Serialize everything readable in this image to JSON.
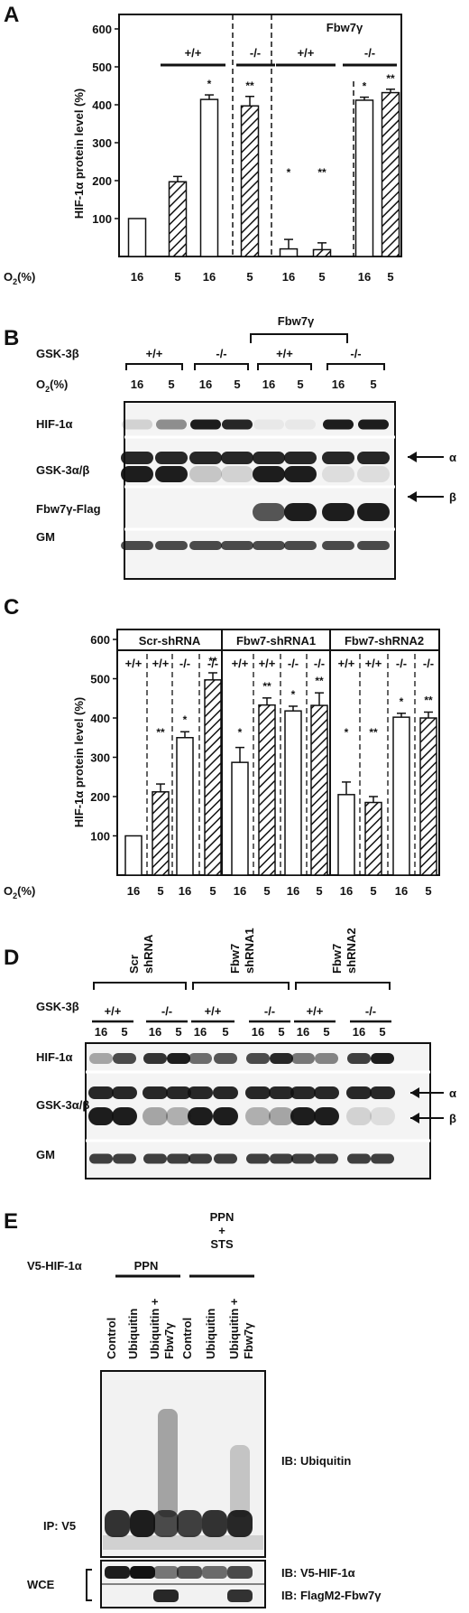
{
  "panelA": {
    "letter": "A",
    "ylabel": "HIF-1α protein level (%)",
    "xlabel_prefix": "O",
    "xlabel_sub": "2",
    "xlabel_suffix": "(%)",
    "group_labels": [
      "+/+",
      "-/-",
      "+/+",
      "-/-"
    ],
    "fbw_label": "Fbw7γ",
    "yticks": [
      "100",
      "200",
      "300",
      "400",
      "500",
      "600"
    ],
    "xticks": [
      "16",
      "5",
      "16",
      "5",
      "16",
      "5",
      "16",
      "5"
    ],
    "stars": [
      "*",
      "**",
      "*",
      "**",
      "*",
      "**"
    ]
  },
  "panelB": {
    "letter": "B",
    "fbw_label": "Fbw7γ",
    "gsk_label": "GSK-3β",
    "o2_prefix": "O",
    "o2_sub": "2",
    "o2_suffix": "(%)",
    "genotypes": [
      "+/+",
      "-/-",
      "+/+",
      "-/-"
    ],
    "lanes": [
      "16",
      "5",
      "16",
      "5",
      "16",
      "5",
      "16",
      "5"
    ],
    "rows": [
      "HIF-1α",
      "GSK-3α/β",
      "Fbw7γ-Flag",
      "GM"
    ],
    "alpha": "α",
    "beta": "β"
  },
  "panelC": {
    "letter": "C",
    "ylabel": "HIF-1α protein level (%)",
    "xlabel_prefix": "O",
    "xlabel_sub": "2",
    "xlabel_suffix": "(%)",
    "groups": [
      "Scr-shRNA",
      "Fbw7-shRNA1",
      "Fbw7-shRNA2"
    ],
    "genotypes": [
      "+/+",
      "+/+",
      "-/-",
      "-/-",
      "+/+",
      "+/+",
      "-/-",
      "-/-",
      "+/+",
      "+/+",
      "-/-",
      "-/-"
    ],
    "yticks": [
      "100",
      "200",
      "300",
      "400",
      "500",
      "600"
    ],
    "xticks": [
      "16",
      "5",
      "16",
      "5",
      "16",
      "5",
      "16",
      "5",
      "16",
      "5",
      "16",
      "5"
    ],
    "stars": [
      "**",
      "*",
      "**",
      "*",
      "**",
      "*",
      "**",
      "*",
      "**",
      "*",
      "**"
    ]
  },
  "panelD": {
    "letter": "D",
    "groups": [
      "Scr shRNA",
      "Fbw7 shRNA1",
      "Fbw7 shRNA2"
    ],
    "gsk_label": "GSK-3β",
    "genotypes": [
      "+/+",
      "-/-",
      "+/+",
      "-/-",
      "+/+",
      "-/-"
    ],
    "lanes": [
      "16",
      "5",
      "16",
      "5",
      "16",
      "5",
      "16",
      "5",
      "16",
      "5",
      "16",
      "5"
    ],
    "rows": [
      "HIF-1α",
      "GSK-3α/β",
      "GM"
    ],
    "alpha": "α",
    "beta": "β"
  },
  "panelE": {
    "letter": "E",
    "v5_label": "V5-HIF-1α",
    "ppn": "PPN",
    "ppn2": "PPN",
    "plus": "+",
    "sts": "STS",
    "lanes": [
      "Control",
      "Ubiquitin",
      "Ubiquitin +",
      "Control",
      "Ubiquitin",
      "Ubiquitin +"
    ],
    "fbw": "Fbw7γ",
    "ip_label": "IP: V5",
    "ib_ub": "IB: Ubiquitin",
    "wce": "WCE",
    "ib_v5": "IB: V5-HIF-1α",
    "ib_flag": "IB: FlagM2-Fbw7γ"
  },
  "chart_data": [
    {
      "type": "bar",
      "ylabel": "HIF-1α protein level (%)",
      "xlabel": "O2(%)",
      "categories": [
        "16",
        "5",
        "16",
        "5",
        "16",
        "5",
        "16",
        "5"
      ],
      "groups": [
        "+/+",
        "-/-",
        "Fbw7γ +/+",
        "Fbw7γ -/-"
      ],
      "values": [
        100,
        197,
        414,
        397,
        20,
        18,
        412,
        432
      ],
      "errors": [
        0,
        14,
        12,
        25,
        25,
        18,
        8,
        9
      ],
      "ylim": [
        0,
        650
      ]
    },
    {
      "type": "bar",
      "ylabel": "HIF-1α protein level (%)",
      "xlabel": "O2(%)",
      "groups": [
        "Scr-shRNA",
        "Fbw7-shRNA1",
        "Fbw7-shRNA2"
      ],
      "categories": [
        "16",
        "5",
        "16",
        "5",
        "16",
        "5",
        "16",
        "5",
        "16",
        "5",
        "16",
        "5"
      ],
      "values": [
        100,
        212,
        350,
        497,
        287,
        433,
        418,
        432,
        205,
        185,
        402,
        400
      ],
      "errors": [
        0,
        20,
        15,
        18,
        38,
        18,
        12,
        32,
        32,
        15,
        10,
        15
      ],
      "ylim": [
        0,
        650
      ]
    }
  ]
}
